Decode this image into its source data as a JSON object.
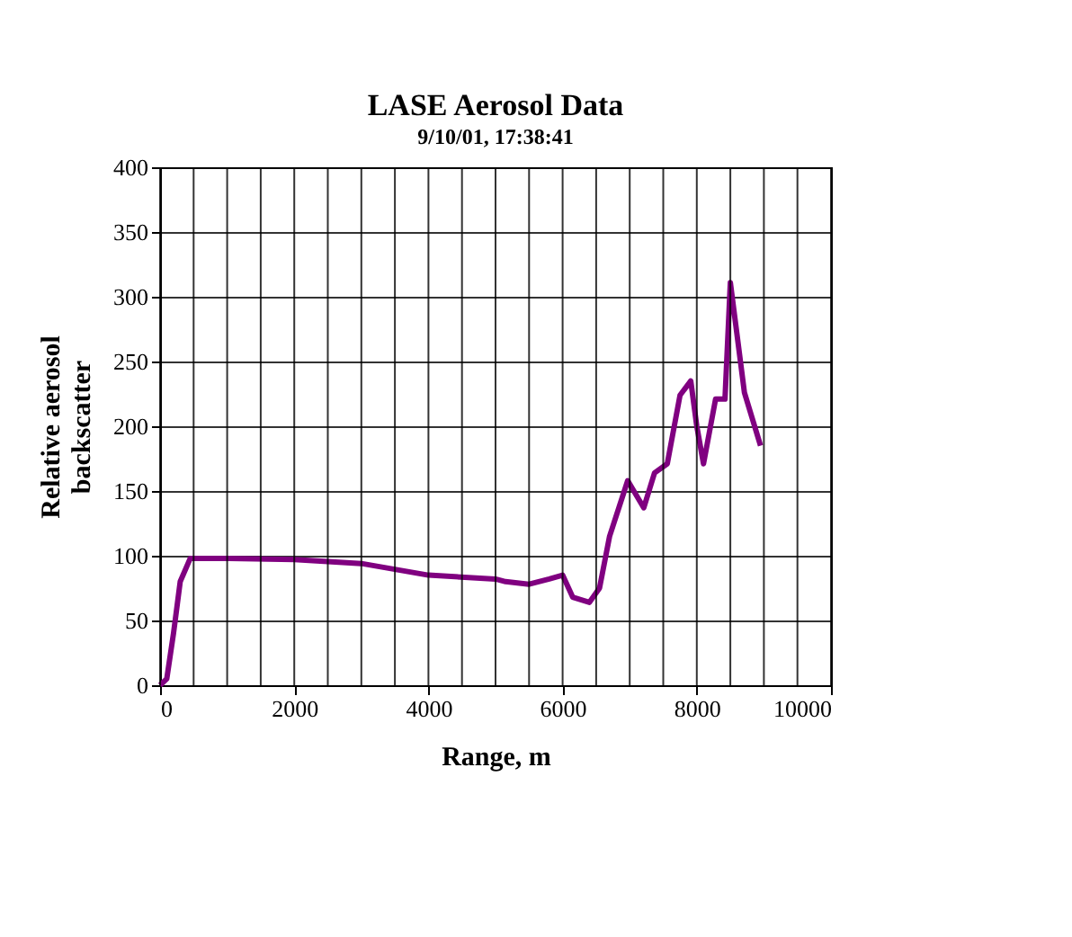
{
  "chart_data": {
    "type": "line",
    "title": "LASE Aerosol Data",
    "subtitle": "9/10/01, 17:38:41",
    "xlabel": "Range, m",
    "ylabel": "Relative aerosol backscatter",
    "series": [
      {
        "color": "#800080",
        "x": [
          0,
          100,
          200,
          300,
          450,
          1000,
          2000,
          3000,
          4000,
          5000,
          5150,
          5500,
          5800,
          6000,
          6150,
          6400,
          6550,
          6700,
          6970,
          7210,
          7370,
          7560,
          7750,
          7910,
          8000,
          8100,
          8280,
          8420,
          8500,
          8710,
          8950
        ],
        "values": [
          0,
          5,
          40,
          80,
          98,
          98,
          97,
          94,
          85,
          82,
          80,
          78,
          82,
          85,
          68,
          64,
          75,
          115,
          158,
          137,
          164,
          171,
          224,
          235,
          200,
          171,
          221,
          221,
          311,
          226,
          185
        ]
      }
    ],
    "xlim": [
      0,
      10000
    ],
    "xticks": [
      0,
      2000,
      4000,
      6000,
      8000,
      10000
    ],
    "ylim": [
      0,
      400
    ],
    "yticks": [
      0,
      50,
      100,
      150,
      200,
      250,
      300,
      350,
      400
    ],
    "grid": true,
    "legend": false
  }
}
